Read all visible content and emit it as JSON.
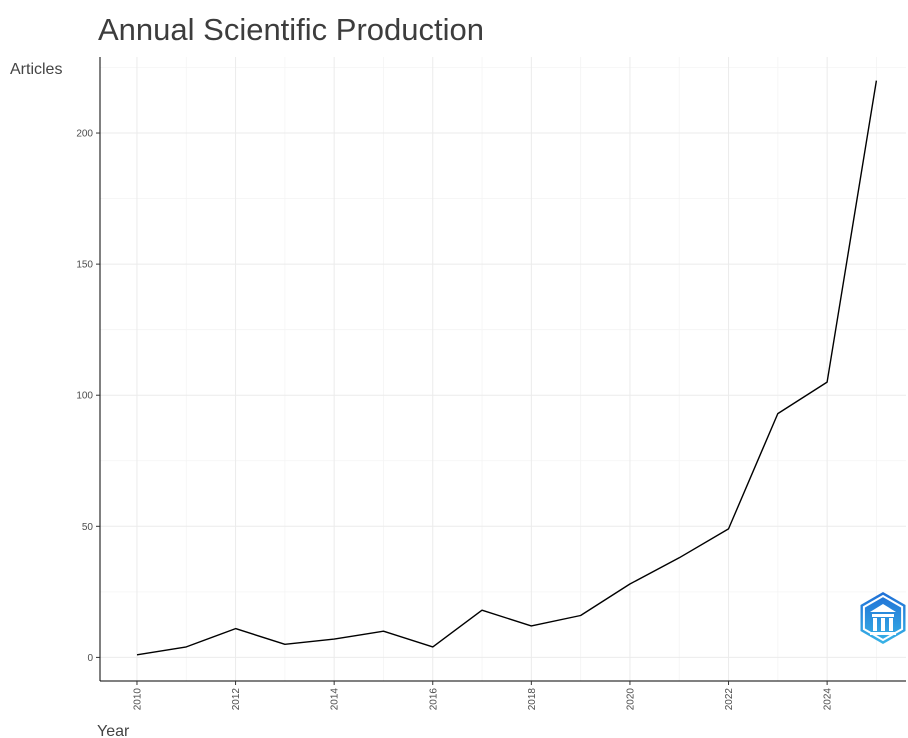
{
  "chart_data": {
    "type": "line",
    "title": "Annual Scientific Production",
    "xlabel": "Year",
    "ylabel": "Articles",
    "x": [
      2010,
      2011,
      2012,
      2013,
      2014,
      2015,
      2016,
      2017,
      2018,
      2019,
      2020,
      2021,
      2022,
      2023,
      2024,
      2025
    ],
    "series": [
      {
        "values": [
          1,
          4,
          11,
          5,
          7,
          10,
          4,
          18,
          12,
          16,
          28,
          38,
          49,
          93,
          105,
          220
        ]
      }
    ],
    "x_ticks": [
      "2010",
      "2012",
      "2014",
      "2016",
      "2018",
      "2020",
      "2022",
      "2024"
    ],
    "y_ticks": [
      "0",
      "50",
      "100",
      "150",
      "200"
    ],
    "xlim": [
      2009.25,
      2025.6
    ],
    "ylim": [
      -9,
      229
    ],
    "grid": true,
    "line_color": "#000000",
    "logo": {
      "name": "bibliometrix-logo",
      "colors": [
        "#1f6fd6",
        "#38b3e6"
      ]
    }
  }
}
